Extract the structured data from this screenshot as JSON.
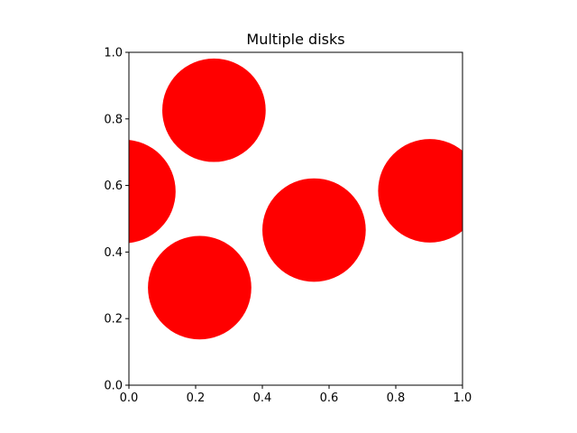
{
  "chart_data": {
    "type": "scatter",
    "title": "Multiple disks",
    "xlabel": "",
    "ylabel": "",
    "xlim": [
      0,
      1
    ],
    "ylim": [
      0,
      1
    ],
    "grid": false,
    "aspect": "equal",
    "x_ticks": [
      "0.0",
      "0.2",
      "0.4",
      "0.6",
      "0.8",
      "1.0"
    ],
    "y_ticks": [
      "0.0",
      "0.2",
      "0.4",
      "0.6",
      "0.8",
      "1.0"
    ],
    "color": "#ff0000",
    "disks": [
      {
        "x": -0.015,
        "y": 0.582,
        "radius": 0.155
      },
      {
        "x": 0.255,
        "y": 0.826,
        "radius": 0.155
      },
      {
        "x": 0.212,
        "y": 0.293,
        "radius": 0.155
      },
      {
        "x": 0.555,
        "y": 0.466,
        "radius": 0.155
      },
      {
        "x": 0.902,
        "y": 0.584,
        "radius": 0.155
      }
    ]
  }
}
